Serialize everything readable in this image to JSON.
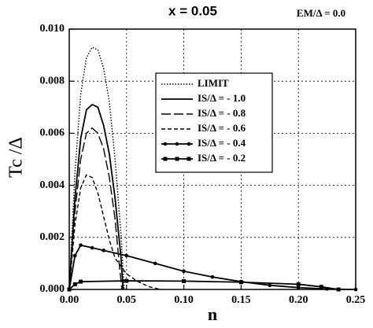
{
  "chart_data": {
    "type": "line",
    "title": "x = 0.05",
    "annotation": "EM/Δ = 0.0",
    "x_label": "n",
    "y_label": "Tc /Δ",
    "xlim": [
      0,
      0.25
    ],
    "ylim": [
      0,
      0.01
    ],
    "xticks": [
      {
        "value": 0,
        "label": "0.00"
      },
      {
        "value": 0.05,
        "label": "0.05"
      },
      {
        "value": 0.1,
        "label": "0.10"
      },
      {
        "value": 0.15,
        "label": "0.15"
      },
      {
        "value": 0.2,
        "label": "0.20"
      },
      {
        "value": 0.25,
        "label": "0.25"
      }
    ],
    "yticks": [
      {
        "value": 0,
        "label": "0.000"
      },
      {
        "value": 0.002,
        "label": "0.002"
      },
      {
        "value": 0.004,
        "label": "0.004"
      },
      {
        "value": 0.006,
        "label": "0.006"
      },
      {
        "value": 0.008,
        "label": "0.008"
      },
      {
        "value": 0.01,
        "label": "0.010"
      }
    ],
    "grid": true,
    "series": [
      {
        "name": "LIMIT",
        "color": "#000000",
        "dash": "dotted",
        "marker": "none",
        "x": [
          0,
          0.005,
          0.01,
          0.015,
          0.02,
          0.025,
          0.03,
          0.035,
          0.04,
          0.045,
          0.048
        ],
        "values": [
          0,
          0.0045,
          0.0075,
          0.0089,
          0.0093,
          0.0092,
          0.0085,
          0.0072,
          0.005,
          0.0022,
          0
        ]
      },
      {
        "name": "IS/Δ = - 1.0",
        "color": "#000000",
        "dash": "solid",
        "marker": "none",
        "x": [
          0,
          0.005,
          0.01,
          0.015,
          0.02,
          0.025,
          0.03,
          0.035,
          0.04,
          0.045,
          0.047
        ],
        "values": [
          0,
          0.0035,
          0.0058,
          0.0069,
          0.0071,
          0.007,
          0.0063,
          0.0052,
          0.0035,
          0.0013,
          0
        ]
      },
      {
        "name": "IS/Δ = - 0.8",
        "color": "#000000",
        "dash": "long-dash",
        "marker": "none",
        "x": [
          0,
          0.005,
          0.01,
          0.015,
          0.02,
          0.025,
          0.03,
          0.035,
          0.04,
          0.044,
          0.046
        ],
        "values": [
          0,
          0.003,
          0.005,
          0.006,
          0.0062,
          0.006,
          0.0054,
          0.0043,
          0.0027,
          0.0008,
          0
        ]
      },
      {
        "name": "IS/Δ = - 0.6",
        "color": "#000000",
        "dash": "dashed",
        "marker": "none",
        "x": [
          0,
          0.005,
          0.01,
          0.015,
          0.02,
          0.025,
          0.03,
          0.035,
          0.04,
          0.05,
          0.06,
          0.07,
          0.08
        ],
        "values": [
          0,
          0.0025,
          0.0039,
          0.0044,
          0.0043,
          0.0037,
          0.0028,
          0.0019,
          0.0012,
          0.0006,
          0.0003,
          0.0001,
          0
        ]
      },
      {
        "name": "IS/Δ = - 0.4",
        "color": "#000000",
        "dash": "solid",
        "marker": "circle",
        "x": [
          0,
          0.005,
          0.01,
          0.02,
          0.03,
          0.05,
          0.075,
          0.1,
          0.125,
          0.15,
          0.175,
          0.2,
          0.225,
          0.25
        ],
        "values": [
          0,
          0.0013,
          0.0017,
          0.0016,
          0.0015,
          0.0013,
          0.001,
          0.0007,
          0.00048,
          0.0003,
          0.00016,
          7e-05,
          2e-05,
          0
        ]
      },
      {
        "name": "IS/Δ = - 0.2",
        "color": "#000000",
        "dash": "solid",
        "marker": "square",
        "x": [
          0,
          0.005,
          0.01,
          0.05,
          0.1,
          0.15,
          0.2,
          0.22,
          0.235
        ],
        "values": [
          0,
          0.0002,
          0.0003,
          0.00033,
          0.00032,
          0.00028,
          0.0002,
          0.0001,
          0
        ]
      }
    ]
  }
}
